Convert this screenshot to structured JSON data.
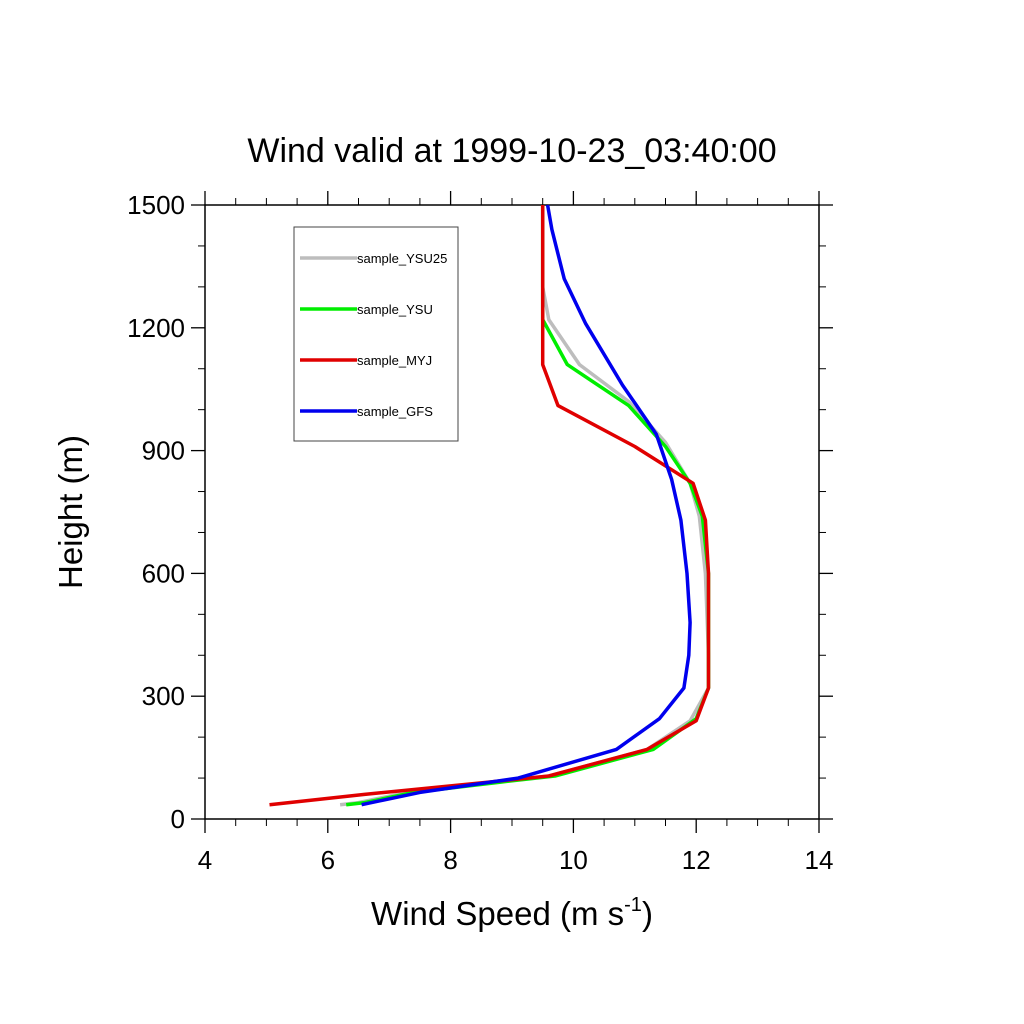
{
  "chart_data": {
    "type": "line",
    "title": "Wind valid at 1999-10-23_03:40:00",
    "xlabel": "Wind Speed (m s",
    "xlabel_superscript": "-1",
    "xlabel_suffix": ")",
    "ylabel": "Height (m)",
    "xlim": [
      4,
      14
    ],
    "ylim": [
      0,
      1500
    ],
    "xticks": [
      "4",
      "6",
      "8",
      "10",
      "12",
      "14"
    ],
    "yticks": [
      "0",
      "300",
      "600",
      "900",
      "1200",
      "1500"
    ],
    "grid": false,
    "legend_position": "top-left",
    "series": [
      {
        "name": "sample_YSU25",
        "color": "#bdbdbd",
        "points": [
          [
            6.2,
            35
          ],
          [
            6.5,
            40
          ],
          [
            7.3,
            65
          ],
          [
            8.7,
            90
          ],
          [
            9.6,
            105
          ],
          [
            11.2,
            170
          ],
          [
            11.9,
            240
          ],
          [
            12.2,
            320
          ],
          [
            12.2,
            400
          ],
          [
            12.15,
            600
          ],
          [
            12.05,
            740
          ],
          [
            11.9,
            820
          ],
          [
            11.5,
            920
          ],
          [
            10.9,
            1020
          ],
          [
            10.1,
            1110
          ],
          [
            9.6,
            1220
          ],
          [
            9.5,
            1300
          ],
          [
            9.5,
            1500
          ]
        ]
      },
      {
        "name": "sample_YSU",
        "color": "#00ee00",
        "points": [
          [
            6.3,
            35
          ],
          [
            6.6,
            40
          ],
          [
            7.4,
            65
          ],
          [
            8.8,
            90
          ],
          [
            9.7,
            105
          ],
          [
            11.3,
            170
          ],
          [
            12.0,
            245
          ],
          [
            12.2,
            320
          ],
          [
            12.2,
            400
          ],
          [
            12.2,
            600
          ],
          [
            12.1,
            740
          ],
          [
            11.9,
            820
          ],
          [
            11.5,
            910
          ],
          [
            10.9,
            1010
          ],
          [
            9.9,
            1110
          ],
          [
            9.5,
            1220
          ],
          [
            9.5,
            1500
          ]
        ]
      },
      {
        "name": "sample_MYJ",
        "color": "#e00000",
        "points": [
          [
            5.05,
            35
          ],
          [
            6.6,
            60
          ],
          [
            8.6,
            90
          ],
          [
            9.6,
            105
          ],
          [
            11.2,
            170
          ],
          [
            12.0,
            240
          ],
          [
            12.2,
            320
          ],
          [
            12.2,
            400
          ],
          [
            12.2,
            600
          ],
          [
            12.15,
            730
          ],
          [
            11.95,
            820
          ],
          [
            11.0,
            910
          ],
          [
            9.75,
            1010
          ],
          [
            9.5,
            1110
          ],
          [
            9.5,
            1200
          ],
          [
            9.5,
            1500
          ]
        ]
      },
      {
        "name": "sample_GFS",
        "color": "#0000ee",
        "points": [
          [
            6.55,
            35
          ],
          [
            7.5,
            65
          ],
          [
            9.1,
            100
          ],
          [
            10.7,
            170
          ],
          [
            11.4,
            245
          ],
          [
            11.8,
            320
          ],
          [
            11.88,
            400
          ],
          [
            11.9,
            480
          ],
          [
            11.85,
            600
          ],
          [
            11.75,
            730
          ],
          [
            11.6,
            830
          ],
          [
            11.35,
            940
          ],
          [
            10.8,
            1060
          ],
          [
            10.2,
            1210
          ],
          [
            9.85,
            1320
          ],
          [
            9.65,
            1440
          ],
          [
            9.58,
            1500
          ]
        ]
      }
    ]
  }
}
